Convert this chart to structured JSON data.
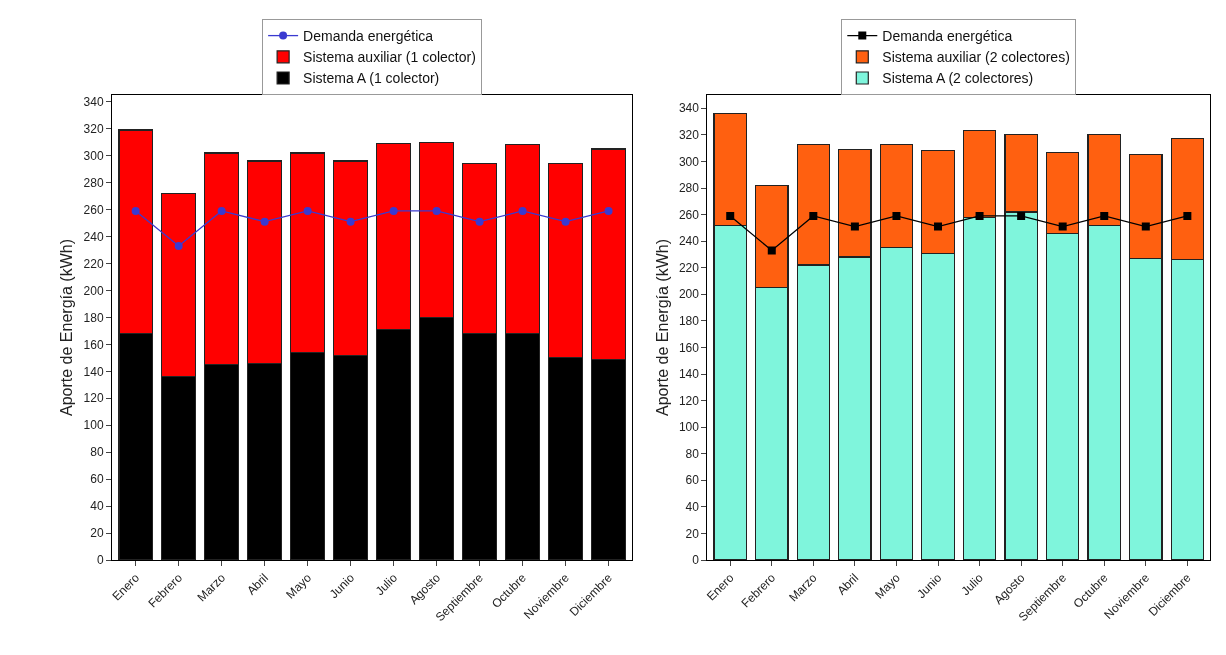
{
  "chart_data": [
    {
      "type": "bar",
      "stacked": true,
      "ylabel": "Aporte de Energía (kWh)",
      "categories": [
        "Enero",
        "Febrero",
        "Marzo",
        "Abril",
        "Mayo",
        "Junio",
        "Julio",
        "Agosto",
        "Septiembre",
        "Octubre",
        "Noviembre",
        "Diciembre"
      ],
      "ylim": [
        0,
        345
      ],
      "yticks": [
        0,
        20,
        40,
        60,
        80,
        100,
        120,
        140,
        160,
        180,
        200,
        220,
        240,
        260,
        280,
        300,
        320,
        340
      ],
      "legend": "top",
      "series": [
        {
          "name": "Sistema A (1 colector)",
          "color": "#000000",
          "values": [
            168,
            136,
            145,
            146,
            154,
            152,
            171,
            180,
            168,
            168,
            150,
            149
          ]
        },
        {
          "name": "Sistema auxiliar (1 colector)",
          "color": "#ff0000",
          "values": [
            151,
            136,
            157,
            150,
            148,
            144,
            138,
            130,
            126,
            140,
            144,
            156
          ]
        },
        {
          "name": "Demanda energética",
          "type": "line",
          "color": "#3a3ad0",
          "marker": "circle",
          "line_style": "solid",
          "values": [
            259,
            233,
            259,
            251,
            259,
            251,
            259,
            259,
            251,
            259,
            251,
            259
          ]
        }
      ]
    },
    {
      "type": "bar",
      "stacked": true,
      "ylabel": "Aporte de Energía (kWh)",
      "categories": [
        "Enero",
        "Febrero",
        "Marzo",
        "Abril",
        "Mayo",
        "Junio",
        "Julio",
        "Agosto",
        "Septiembre",
        "Octubre",
        "Noviembre",
        "Diciembre"
      ],
      "ylim": [
        0,
        350
      ],
      "yticks": [
        0,
        20,
        40,
        60,
        80,
        100,
        120,
        140,
        160,
        180,
        200,
        220,
        240,
        260,
        280,
        300,
        320,
        340
      ],
      "legend": "top",
      "series": [
        {
          "name": "Sistema A (2 colectores)",
          "color": "#7ff5dc",
          "values": [
            252,
            205,
            222,
            228,
            235,
            231,
            258,
            262,
            246,
            252,
            227,
            226
          ]
        },
        {
          "name": "Sistema auxiliar (2 colectores)",
          "color": "#ff6010",
          "values": [
            84,
            77,
            91,
            81,
            78,
            77,
            65,
            58,
            61,
            68,
            78,
            91
          ]
        },
        {
          "name": "Demanda energética",
          "type": "line",
          "color": "#000000",
          "marker": "square",
          "line_style": "solid",
          "values": [
            259,
            233,
            259,
            251,
            259,
            251,
            259,
            259,
            251,
            259,
            251,
            259
          ]
        }
      ]
    }
  ]
}
